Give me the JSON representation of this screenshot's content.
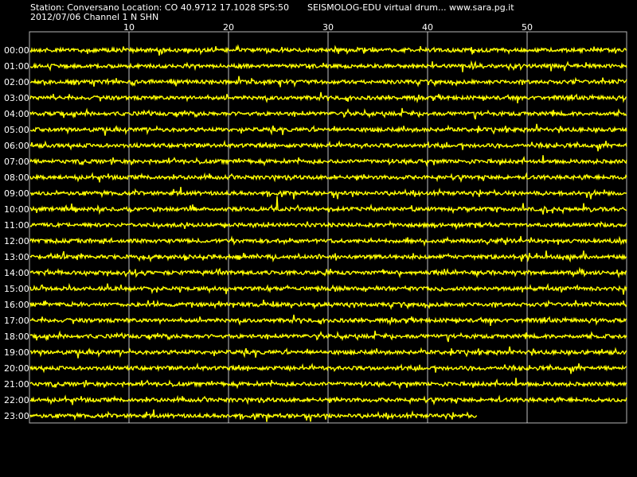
{
  "header": {
    "station_line": "Station: Conversano Location: CO 40.9712 17.1028 SPS:50",
    "title": "SEISMOLOG-EDU virtual drum... www.sara.pg.it",
    "date_channel": "2012/07/06  Channel 1 N SHN"
  },
  "chart_data": {
    "type": "line",
    "title": "SEISMOLOG-EDU virtual drum... www.sara.pg.it",
    "xlabel": "",
    "ylabel": "",
    "x_unit": "minutes",
    "xlim": [
      0,
      60
    ],
    "x_ticks": [
      10,
      20,
      30,
      40,
      50
    ],
    "rows": [
      "00:00",
      "01:00",
      "02:00",
      "03:00",
      "04:00",
      "05:00",
      "06:00",
      "07:00",
      "08:00",
      "09:00",
      "10:00",
      "11:00",
      "12:00",
      "13:00",
      "14:00",
      "15:00",
      "16:00",
      "17:00",
      "18:00",
      "19:00",
      "20:00",
      "21:00",
      "22:00",
      "23:00"
    ],
    "last_row_end_minute": 45,
    "grid": true,
    "colors": {
      "trace": "#ffff00",
      "grid": "#ffffff",
      "background": "#000000",
      "text": "#ffffff"
    }
  }
}
